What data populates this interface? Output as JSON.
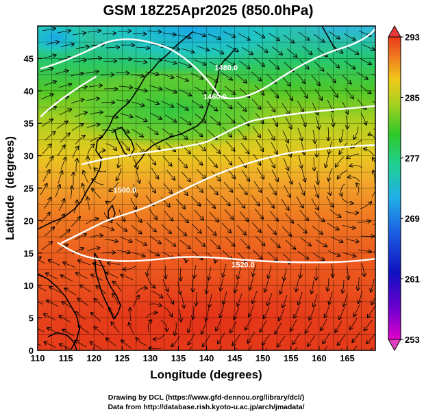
{
  "chart_data": {
    "type": "heatmap",
    "title": "GSM 18Z25Apr2025 (850.0hPa)",
    "xlabel": "Longitude (degrees)",
    "ylabel": "Latitude  (degrees)",
    "xlim": [
      110,
      170
    ],
    "ylim": [
      0,
      50
    ],
    "xticks": [
      "110",
      "115",
      "120",
      "125",
      "130",
      "135",
      "140",
      "145",
      "150",
      "155",
      "160",
      "165"
    ],
    "yticks": [
      "0",
      "5",
      "10",
      "15",
      "20",
      "25",
      "30",
      "35",
      "40",
      "45"
    ],
    "colorbar": {
      "range": [
        253,
        293
      ],
      "ticks": [
        "293",
        "285",
        "277",
        "269",
        "261",
        "253"
      ]
    },
    "contour_labels": [
      {
        "text": "1520.0",
        "lon": 146.5,
        "lat": 12.8
      },
      {
        "text": "1480.0",
        "lon": 143.5,
        "lat": 43.2
      },
      {
        "text": "1460.0",
        "lon": 141.5,
        "lat": 38.7
      },
      {
        "text": "1500.0",
        "lon": 125.5,
        "lat": 24.3
      }
    ],
    "colors": {
      "warm": "#e8401c",
      "orange": "#f08020",
      "yellow": "#f0d000",
      "green": "#28c828",
      "cyan": "#20c8d0",
      "blue": "#2060e0",
      "magenta": "#e000e0"
    }
  },
  "credits": {
    "line1": "Drawing by DCL (https://www.gfd-dennou.org/library/dcl/)",
    "line2": "Data from http://database.rish.kyoto-u.ac.jp/arch/jmadata/"
  }
}
